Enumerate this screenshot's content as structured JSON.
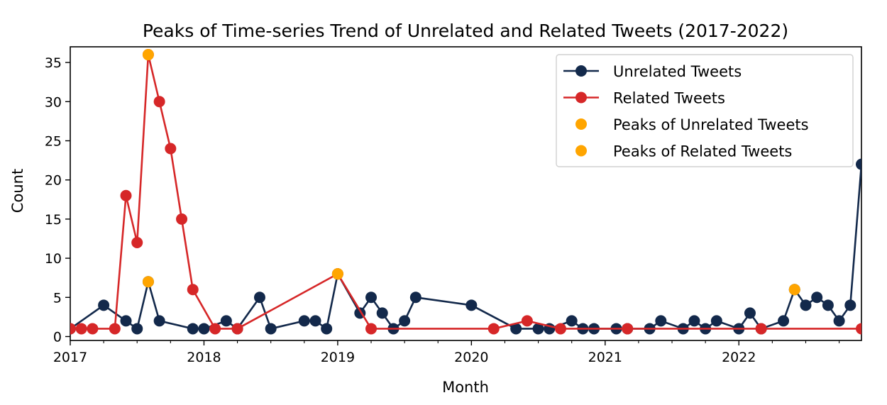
{
  "chart_data": {
    "type": "line",
    "title": "Peaks of Time-series Trend of Unrelated and Related Tweets (2017-2022)",
    "xlabel": "Month",
    "ylabel": "Count",
    "xlim": [
      "2017-01",
      "2022-12"
    ],
    "ylim": [
      -0.5,
      37
    ],
    "x_ticks": [
      "2017",
      "2018",
      "2019",
      "2020",
      "2021",
      "2022"
    ],
    "y_ticks": [
      0,
      5,
      10,
      15,
      20,
      25,
      30,
      35
    ],
    "grid": false,
    "legend_position": "top-right",
    "series": [
      {
        "name": "Unrelated Tweets",
        "color": "#13294b",
        "marker": "circle",
        "points": [
          [
            "2017-01",
            1
          ],
          [
            "2017-04",
            4
          ],
          [
            "2017-06",
            2
          ],
          [
            "2017-07",
            1
          ],
          [
            "2017-08",
            7
          ],
          [
            "2017-09",
            2
          ],
          [
            "2017-12",
            1
          ],
          [
            "2018-01",
            1
          ],
          [
            "2018-03",
            2
          ],
          [
            "2018-04",
            1
          ],
          [
            "2018-06",
            5
          ],
          [
            "2018-07",
            1
          ],
          [
            "2018-10",
            2
          ],
          [
            "2018-11",
            2
          ],
          [
            "2018-12",
            1
          ],
          [
            "2019-01",
            8
          ],
          [
            "2019-03",
            3
          ],
          [
            "2019-04",
            5
          ],
          [
            "2019-05",
            3
          ],
          [
            "2019-06",
            1
          ],
          [
            "2019-07",
            2
          ],
          [
            "2019-08",
            5
          ],
          [
            "2020-01",
            4
          ],
          [
            "2020-05",
            1
          ],
          [
            "2020-07",
            1
          ],
          [
            "2020-08",
            1
          ],
          [
            "2020-10",
            2
          ],
          [
            "2020-11",
            1
          ],
          [
            "2020-12",
            1
          ],
          [
            "2021-02",
            1
          ],
          [
            "2021-03",
            1
          ],
          [
            "2021-05",
            1
          ],
          [
            "2021-06",
            2
          ],
          [
            "2021-08",
            1
          ],
          [
            "2021-09",
            2
          ],
          [
            "2021-10",
            1
          ],
          [
            "2021-11",
            2
          ],
          [
            "2022-01",
            1
          ],
          [
            "2022-02",
            3
          ],
          [
            "2022-03",
            1
          ],
          [
            "2022-05",
            2
          ],
          [
            "2022-06",
            6
          ],
          [
            "2022-07",
            4
          ],
          [
            "2022-08",
            5
          ],
          [
            "2022-09",
            4
          ],
          [
            "2022-10",
            2
          ],
          [
            "2022-11",
            4
          ],
          [
            "2022-12",
            22
          ]
        ]
      },
      {
        "name": "Related Tweets",
        "color": "#d62728",
        "marker": "circle",
        "points": [
          [
            "2017-01",
            1
          ],
          [
            "2017-02",
            1
          ],
          [
            "2017-03",
            1
          ],
          [
            "2017-05",
            1
          ],
          [
            "2017-06",
            18
          ],
          [
            "2017-07",
            12
          ],
          [
            "2017-08",
            36
          ],
          [
            "2017-09",
            30
          ],
          [
            "2017-10",
            24
          ],
          [
            "2017-11",
            15
          ],
          [
            "2017-12",
            6
          ],
          [
            "2018-02",
            1
          ],
          [
            "2018-04",
            1
          ],
          [
            "2019-01",
            8
          ],
          [
            "2019-04",
            1
          ],
          [
            "2020-03",
            1
          ],
          [
            "2020-06",
            2
          ],
          [
            "2020-09",
            1
          ],
          [
            "2021-03",
            1
          ],
          [
            "2022-03",
            1
          ],
          [
            "2022-12",
            1
          ]
        ]
      },
      {
        "name": "Peaks of Unrelated Tweets",
        "color": "#ffa500",
        "marker": "circle",
        "line": false,
        "points": [
          [
            "2017-08",
            7
          ],
          [
            "2019-01",
            8
          ],
          [
            "2022-06",
            6
          ]
        ]
      },
      {
        "name": "Peaks of Related Tweets",
        "color": "#ffa500",
        "marker": "circle",
        "line": false,
        "points": [
          [
            "2017-08",
            36
          ],
          [
            "2019-01",
            8
          ]
        ]
      }
    ]
  }
}
